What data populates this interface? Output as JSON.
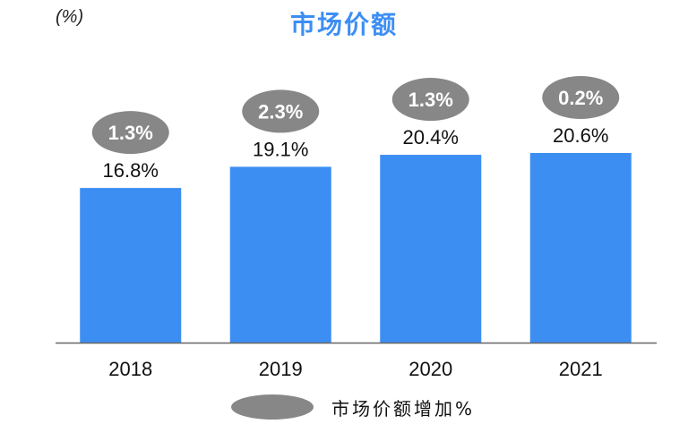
{
  "colors": {
    "bar": "#3d8ef3",
    "bubble": "#878787",
    "title": "#3d8ef3",
    "axis": "#666666",
    "text": "#111111"
  },
  "chart_data": {
    "type": "bar",
    "title": "市场价额",
    "unit": "(%)",
    "categories": [
      "2018",
      "2019",
      "2020",
      "2021"
    ],
    "values": [
      16.8,
      19.1,
      20.4,
      20.6
    ],
    "value_labels": [
      "16.8%",
      "19.1%",
      "20.4%",
      "20.6%"
    ],
    "increase": [
      1.3,
      2.3,
      1.3,
      0.2
    ],
    "increase_labels": [
      "1.3%",
      "2.3%",
      "1.3%",
      "0.2%"
    ],
    "ylim": [
      0,
      20.6
    ],
    "xlabel": "",
    "ylabel": "",
    "legend": {
      "label": "市场价额增加%",
      "position": "bottom-center"
    }
  }
}
